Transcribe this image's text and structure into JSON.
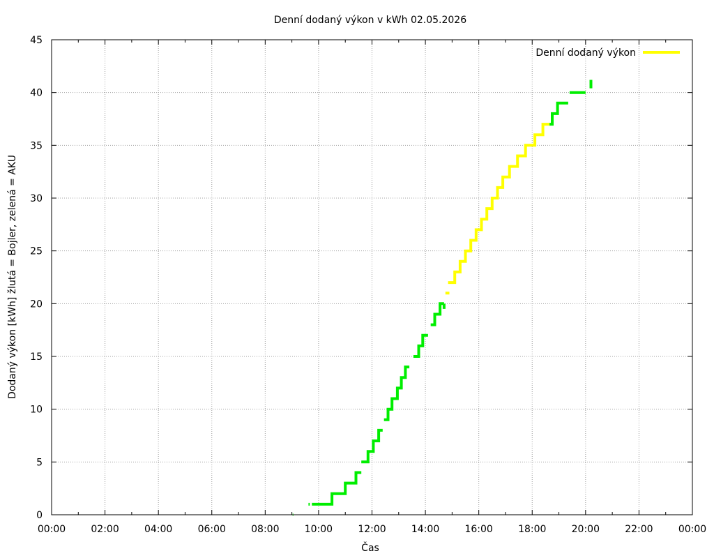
{
  "chart_data": {
    "type": "line",
    "title": "Denní dodaný výkon v kWh 02.05.2026",
    "xlabel": "Čas",
    "ylabel": "Dodaný výkon [kWh]  žlutá = Bojler, zelená = AKU",
    "xlim": [
      0,
      24
    ],
    "ylim": [
      0,
      45
    ],
    "x_ticks": [
      "00:00",
      "02:00",
      "04:00",
      "06:00",
      "08:00",
      "10:00",
      "12:00",
      "14:00",
      "16:00",
      "18:00",
      "20:00",
      "22:00",
      "00:00"
    ],
    "y_ticks": [
      0,
      5,
      10,
      15,
      20,
      25,
      30,
      35,
      40,
      45
    ],
    "grid": true,
    "legend": {
      "position": "top-right",
      "entries": [
        {
          "label": "Denní dodaný výkon",
          "color": "#ffff00"
        }
      ]
    },
    "colors": {
      "aku": "#00ee00",
      "bojler": "#ffff00"
    },
    "series": [
      {
        "name": "Denní dodaný výkon",
        "segments": [
          {
            "color": "aku",
            "points": [
              [
                9.03,
                0
              ],
              [
                9.05,
                0
              ]
            ]
          },
          {
            "color": "aku",
            "points": [
              [
                9.62,
                1
              ],
              [
                9.67,
                1
              ]
            ]
          },
          {
            "color": "aku",
            "points": [
              [
                9.75,
                1
              ],
              [
                10.5,
                1
              ],
              [
                10.5,
                2
              ],
              [
                11.0,
                2
              ],
              [
                11.0,
                3
              ],
              [
                11.4,
                3
              ],
              [
                11.4,
                4
              ],
              [
                11.6,
                4
              ]
            ]
          },
          {
            "color": "aku",
            "points": [
              [
                11.6,
                5
              ],
              [
                11.85,
                5
              ],
              [
                11.85,
                6
              ],
              [
                12.05,
                6
              ],
              [
                12.05,
                7
              ],
              [
                12.25,
                7
              ],
              [
                12.25,
                8
              ],
              [
                12.4,
                8
              ]
            ]
          },
          {
            "color": "aku",
            "points": [
              [
                12.45,
                9
              ],
              [
                12.6,
                9
              ],
              [
                12.6,
                10
              ],
              [
                12.75,
                10
              ],
              [
                12.75,
                11
              ],
              [
                12.95,
                11
              ],
              [
                12.95,
                12
              ],
              [
                13.1,
                12
              ],
              [
                13.1,
                13
              ],
              [
                13.25,
                13
              ],
              [
                13.25,
                14
              ],
              [
                13.4,
                14
              ]
            ]
          },
          {
            "color": "aku",
            "points": [
              [
                13.55,
                15
              ],
              [
                13.75,
                15
              ],
              [
                13.75,
                16
              ],
              [
                13.9,
                16
              ],
              [
                13.9,
                17
              ],
              [
                14.1,
                17
              ]
            ]
          },
          {
            "color": "aku",
            "points": [
              [
                14.2,
                18
              ],
              [
                14.35,
                18
              ],
              [
                14.35,
                19
              ],
              [
                14.55,
                19
              ],
              [
                14.55,
                20
              ],
              [
                14.7,
                20
              ]
            ]
          },
          {
            "color": "aku",
            "points": [
              [
                14.7,
                20
              ],
              [
                14.7,
                19.5
              ]
            ]
          },
          {
            "color": "bojler",
            "points": [
              [
                14.75,
                21
              ],
              [
                14.9,
                21
              ]
            ]
          },
          {
            "color": "bojler",
            "points": [
              [
                14.85,
                22
              ],
              [
                15.1,
                22
              ],
              [
                15.1,
                23
              ],
              [
                15.3,
                23
              ],
              [
                15.3,
                24
              ],
              [
                15.5,
                24
              ],
              [
                15.5,
                25
              ],
              [
                15.7,
                25
              ],
              [
                15.7,
                26
              ],
              [
                15.9,
                26
              ],
              [
                15.9,
                27
              ],
              [
                16.1,
                27
              ],
              [
                16.1,
                28
              ],
              [
                16.3,
                28
              ],
              [
                16.3,
                29
              ],
              [
                16.5,
                29
              ],
              [
                16.5,
                30
              ],
              [
                16.7,
                30
              ],
              [
                16.7,
                31
              ],
              [
                16.9,
                31
              ],
              [
                16.9,
                32
              ],
              [
                17.15,
                32
              ],
              [
                17.15,
                33
              ],
              [
                17.45,
                33
              ],
              [
                17.45,
                34
              ],
              [
                17.75,
                34
              ],
              [
                17.75,
                35
              ],
              [
                18.1,
                35
              ],
              [
                18.1,
                36
              ],
              [
                18.4,
                36
              ],
              [
                18.4,
                37
              ],
              [
                18.65,
                37
              ]
            ]
          },
          {
            "color": "aku",
            "points": [
              [
                18.65,
                37
              ],
              [
                18.75,
                37
              ],
              [
                18.75,
                38
              ],
              [
                18.95,
                38
              ],
              [
                18.95,
                39
              ],
              [
                19.35,
                39
              ]
            ]
          },
          {
            "color": "aku",
            "points": [
              [
                19.4,
                40
              ],
              [
                20.0,
                40
              ]
            ]
          },
          {
            "color": "aku",
            "points": [
              [
                20.2,
                40.4
              ],
              [
                20.2,
                41.2
              ]
            ]
          }
        ]
      }
    ]
  }
}
